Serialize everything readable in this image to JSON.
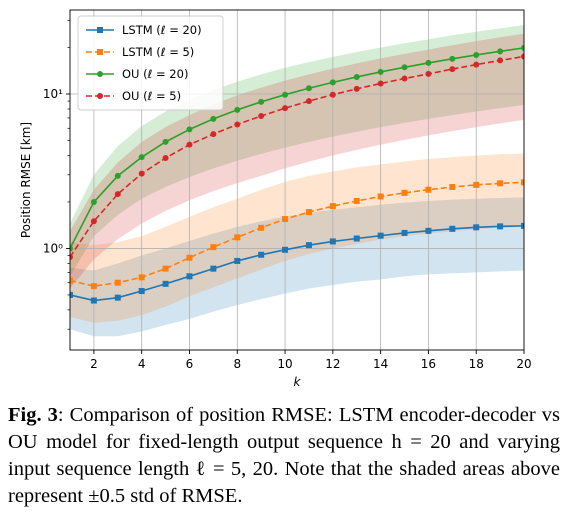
{
  "chart_data": {
    "type": "line",
    "xlabel": "k",
    "ylabel": "Position RMSE [km]",
    "yscale": "log",
    "xlim": [
      1,
      20
    ],
    "ylim": [
      0.22,
      35
    ],
    "grid": true,
    "legend_position": "top-left",
    "x_ticks": [
      2,
      4,
      6,
      8,
      10,
      12,
      14,
      16,
      18,
      20
    ],
    "x_tick_labels": [
      "2",
      "4",
      "6",
      "8",
      "10",
      "12",
      "14",
      "16",
      "18",
      "20"
    ],
    "y_ticks": [
      1,
      10
    ],
    "y_tick_labels": [
      "10⁰",
      "10¹"
    ],
    "x": [
      1,
      2,
      3,
      4,
      5,
      6,
      7,
      8,
      9,
      10,
      11,
      12,
      13,
      14,
      15,
      16,
      17,
      18,
      19,
      20
    ],
    "series": [
      {
        "name": "LSTM (ℓ = 20)",
        "color": "#1f77b4",
        "linestyle": "solid",
        "marker": "square",
        "values": [
          0.5,
          0.46,
          0.48,
          0.53,
          0.59,
          0.66,
          0.74,
          0.83,
          0.91,
          0.98,
          1.05,
          1.11,
          1.16,
          1.21,
          1.26,
          1.3,
          1.34,
          1.37,
          1.39,
          1.4
        ],
        "band_lower": [
          0.3,
          0.27,
          0.27,
          0.29,
          0.32,
          0.35,
          0.39,
          0.43,
          0.47,
          0.51,
          0.55,
          0.58,
          0.61,
          0.63,
          0.66,
          0.68,
          0.69,
          0.7,
          0.71,
          0.72
        ],
        "band_upper": [
          0.75,
          0.72,
          0.8,
          0.9,
          1.0,
          1.12,
          1.25,
          1.38,
          1.5,
          1.6,
          1.7,
          1.78,
          1.85,
          1.92,
          1.98,
          2.03,
          2.07,
          2.1,
          2.12,
          2.14
        ]
      },
      {
        "name": "LSTM (ℓ = 5)",
        "color": "#ff7f0e",
        "linestyle": "dashed",
        "marker": "square",
        "values": [
          0.62,
          0.57,
          0.6,
          0.65,
          0.74,
          0.87,
          1.02,
          1.18,
          1.36,
          1.55,
          1.72,
          1.88,
          2.03,
          2.17,
          2.29,
          2.4,
          2.5,
          2.58,
          2.64,
          2.68
        ],
        "band_lower": [
          0.36,
          0.33,
          0.34,
          0.37,
          0.42,
          0.49,
          0.56,
          0.64,
          0.73,
          0.83,
          0.92,
          1.0,
          1.07,
          1.14,
          1.2,
          1.25,
          1.29,
          1.33,
          1.36,
          1.38
        ],
        "band_upper": [
          1.1,
          1.05,
          1.1,
          1.2,
          1.38,
          1.6,
          1.85,
          2.1,
          2.4,
          2.7,
          2.95,
          3.15,
          3.35,
          3.5,
          3.65,
          3.8,
          3.9,
          4.0,
          4.07,
          4.12
        ]
      },
      {
        "name": "OU (ℓ = 20)",
        "color": "#2ca02c",
        "linestyle": "solid",
        "marker": "circle",
        "values": [
          1.0,
          2.0,
          2.95,
          3.9,
          4.9,
          5.9,
          6.9,
          7.9,
          8.9,
          9.9,
          10.9,
          11.9,
          12.9,
          13.9,
          14.9,
          15.9,
          16.9,
          17.9,
          18.9,
          19.9
        ],
        "band_lower": [
          0.66,
          1.2,
          1.65,
          2.1,
          2.5,
          2.9,
          3.3,
          3.7,
          4.1,
          4.5,
          4.9,
          5.3,
          5.7,
          6.1,
          6.5,
          6.9,
          7.3,
          7.7,
          8.1,
          8.5
        ],
        "band_upper": [
          1.45,
          3.0,
          4.6,
          6.2,
          7.7,
          9.2,
          10.6,
          12.0,
          13.4,
          14.8,
          16.1,
          17.4,
          18.7,
          20.0,
          21.3,
          22.6,
          24.0,
          25.3,
          26.6,
          28.0
        ]
      },
      {
        "name": "OU (ℓ = 5)",
        "color": "#d62728",
        "linestyle": "dashed",
        "marker": "circle",
        "values": [
          0.88,
          1.5,
          2.25,
          3.05,
          3.85,
          4.7,
          5.5,
          6.35,
          7.2,
          8.1,
          9.0,
          9.9,
          10.8,
          11.7,
          12.6,
          13.5,
          14.5,
          15.5,
          16.5,
          17.5
        ],
        "band_lower": [
          0.55,
          0.85,
          1.15,
          1.45,
          1.75,
          2.05,
          2.35,
          2.65,
          2.95,
          3.3,
          3.65,
          4.0,
          4.35,
          4.7,
          5.05,
          5.4,
          5.75,
          6.1,
          6.45,
          6.8
        ],
        "band_upper": [
          1.3,
          2.4,
          3.6,
          4.9,
          6.1,
          7.3,
          8.6,
          9.8,
          11.0,
          12.2,
          13.4,
          14.6,
          15.8,
          17.0,
          18.2,
          19.4,
          20.7,
          22.0,
          23.3,
          24.6
        ]
      }
    ]
  },
  "caption": {
    "label": "Fig. 3",
    "text": ": Comparison of position RMSE: LSTM encoder-decoder vs OU model for fixed-length output sequence h = 20 and varying input sequence length ℓ = 5, 20. Note that the shaded areas above represent ±0.5 std of RMSE."
  }
}
